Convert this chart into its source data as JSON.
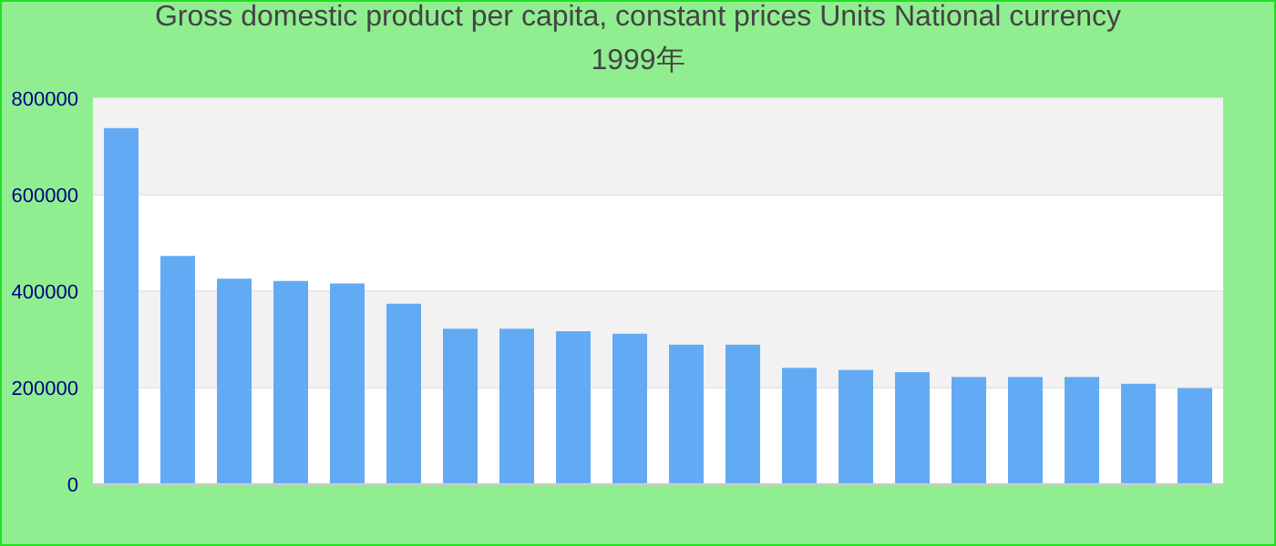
{
  "chart_data": {
    "type": "bar",
    "title": "Gross domestic product per capita, constant prices Units National currency 1999年",
    "categories": [
      null,
      null,
      null,
      null,
      null,
      null,
      null,
      null,
      null,
      null,
      null,
      null,
      null,
      null,
      null,
      null,
      null,
      null,
      null,
      null
    ],
    "values": [
      738000,
      473000,
      426000,
      421000,
      416000,
      374000,
      322000,
      322000,
      317000,
      312000,
      289000,
      289000,
      241000,
      237000,
      232000,
      222000,
      222000,
      222000,
      208000,
      199000
    ],
    "color": "#63aaf4",
    "ylim": [
      0,
      800000
    ],
    "yticks": [
      0,
      200000,
      400000,
      600000,
      800000
    ],
    "grid": "y"
  }
}
